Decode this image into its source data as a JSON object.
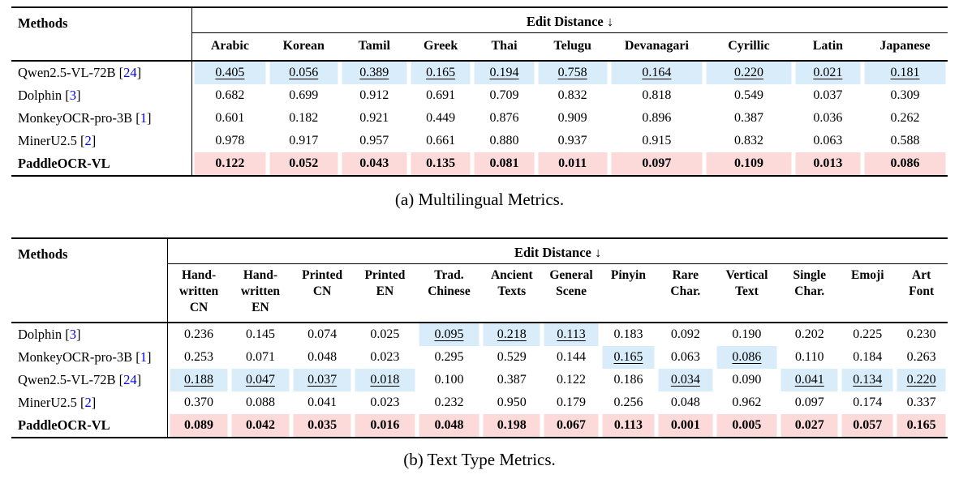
{
  "colors": {
    "second_best_highlight": "#d8ecf9",
    "best_highlight": "#fcdada",
    "citation_blue": "#0000EE"
  },
  "tables": [
    {
      "id": "multilingual",
      "methods_header": "Methods",
      "metric_header": "Edit Distance ↓",
      "columns": [
        "Arabic",
        "Korean",
        "Tamil",
        "Greek",
        "Thai",
        "Telugu",
        "Devanagari",
        "Cyrillic",
        "Latin",
        "Japanese"
      ],
      "rows": [
        {
          "method": "Qwen2.5-VL-72B",
          "cite": "24",
          "bold": false,
          "cells": [
            {
              "v": "0.405",
              "hl": "blue",
              "u": true
            },
            {
              "v": "0.056",
              "hl": "blue",
              "u": true
            },
            {
              "v": "0.389",
              "hl": "blue",
              "u": true
            },
            {
              "v": "0.165",
              "hl": "blue",
              "u": true
            },
            {
              "v": "0.194",
              "hl": "blue",
              "u": true
            },
            {
              "v": "0.758",
              "hl": "blue",
              "u": true
            },
            {
              "v": "0.164",
              "hl": "blue",
              "u": true
            },
            {
              "v": "0.220",
              "hl": "blue",
              "u": true
            },
            {
              "v": "0.021",
              "hl": "blue",
              "u": true
            },
            {
              "v": "0.181",
              "hl": "blue",
              "u": true
            }
          ]
        },
        {
          "method": "Dolphin",
          "cite": "3",
          "bold": false,
          "cells": [
            {
              "v": "0.682"
            },
            {
              "v": "0.699"
            },
            {
              "v": "0.912"
            },
            {
              "v": "0.691"
            },
            {
              "v": "0.709"
            },
            {
              "v": "0.832"
            },
            {
              "v": "0.818"
            },
            {
              "v": "0.549"
            },
            {
              "v": "0.037"
            },
            {
              "v": "0.309"
            }
          ]
        },
        {
          "method": "MonkeyOCR-pro-3B",
          "cite": "1",
          "bold": false,
          "cells": [
            {
              "v": "0.601"
            },
            {
              "v": "0.182"
            },
            {
              "v": "0.921"
            },
            {
              "v": "0.449"
            },
            {
              "v": "0.876"
            },
            {
              "v": "0.909"
            },
            {
              "v": "0.896"
            },
            {
              "v": "0.387"
            },
            {
              "v": "0.036"
            },
            {
              "v": "0.262"
            }
          ]
        },
        {
          "method": "MinerU2.5",
          "cite": "2",
          "bold": false,
          "cells": [
            {
              "v": "0.978"
            },
            {
              "v": "0.917"
            },
            {
              "v": "0.957"
            },
            {
              "v": "0.661"
            },
            {
              "v": "0.880"
            },
            {
              "v": "0.937"
            },
            {
              "v": "0.915"
            },
            {
              "v": "0.832"
            },
            {
              "v": "0.063"
            },
            {
              "v": "0.588"
            }
          ]
        },
        {
          "method": "PaddleOCR-VL",
          "cite": null,
          "bold": true,
          "cells": [
            {
              "v": "0.122",
              "hl": "pink"
            },
            {
              "v": "0.052",
              "hl": "pink"
            },
            {
              "v": "0.043",
              "hl": "pink"
            },
            {
              "v": "0.135",
              "hl": "pink"
            },
            {
              "v": "0.081",
              "hl": "pink"
            },
            {
              "v": "0.011",
              "hl": "pink"
            },
            {
              "v": "0.097",
              "hl": "pink"
            },
            {
              "v": "0.109",
              "hl": "pink"
            },
            {
              "v": "0.013",
              "hl": "pink"
            },
            {
              "v": "0.086",
              "hl": "pink"
            }
          ]
        }
      ],
      "caption": "(a) Multilingual Metrics."
    },
    {
      "id": "text-type",
      "methods_header": "Methods",
      "metric_header": "Edit Distance ↓",
      "columns": [
        [
          "Hand-",
          "written",
          "CN"
        ],
        [
          "Hand-",
          "written",
          "EN"
        ],
        [
          "Printed",
          "CN"
        ],
        [
          "Printed",
          "EN"
        ],
        [
          "Trad.",
          "Chinese"
        ],
        [
          "Ancient",
          "Texts"
        ],
        [
          "General",
          "Scene"
        ],
        [
          "Pinyin"
        ],
        [
          "Rare",
          "Char."
        ],
        [
          "Vertical",
          "Text"
        ],
        [
          "Single",
          "Char."
        ],
        [
          "Emoji"
        ],
        [
          "Art",
          "Font"
        ]
      ],
      "rows": [
        {
          "method": "Dolphin",
          "cite": "3",
          "bold": false,
          "cells": [
            {
              "v": "0.236"
            },
            {
              "v": "0.145"
            },
            {
              "v": "0.074"
            },
            {
              "v": "0.025"
            },
            {
              "v": "0.095",
              "hl": "blue",
              "u": true
            },
            {
              "v": "0.218",
              "hl": "blue",
              "u": true
            },
            {
              "v": "0.113",
              "hl": "blue",
              "u": true
            },
            {
              "v": "0.183"
            },
            {
              "v": "0.092"
            },
            {
              "v": "0.190"
            },
            {
              "v": "0.202"
            },
            {
              "v": "0.225"
            },
            {
              "v": "0.230"
            }
          ]
        },
        {
          "method": "MonkeyOCR-pro-3B",
          "cite": "1",
          "bold": false,
          "cells": [
            {
              "v": "0.253"
            },
            {
              "v": "0.071"
            },
            {
              "v": "0.048"
            },
            {
              "v": "0.023"
            },
            {
              "v": "0.295"
            },
            {
              "v": "0.529"
            },
            {
              "v": "0.144"
            },
            {
              "v": "0.165",
              "hl": "blue",
              "u": true
            },
            {
              "v": "0.063"
            },
            {
              "v": "0.086",
              "hl": "blue",
              "u": true
            },
            {
              "v": "0.110"
            },
            {
              "v": "0.184"
            },
            {
              "v": "0.263"
            }
          ]
        },
        {
          "method": "Qwen2.5-VL-72B",
          "cite": "24",
          "bold": false,
          "cells": [
            {
              "v": "0.188",
              "hl": "blue",
              "u": true
            },
            {
              "v": "0.047",
              "hl": "blue",
              "u": true
            },
            {
              "v": "0.037",
              "hl": "blue",
              "u": true
            },
            {
              "v": "0.018",
              "hl": "blue",
              "u": true
            },
            {
              "v": "0.100"
            },
            {
              "v": "0.387"
            },
            {
              "v": "0.122"
            },
            {
              "v": "0.186"
            },
            {
              "v": "0.034",
              "hl": "blue",
              "u": true
            },
            {
              "v": "0.090"
            },
            {
              "v": "0.041",
              "hl": "blue",
              "u": true
            },
            {
              "v": "0.134",
              "hl": "blue",
              "u": true
            },
            {
              "v": "0.220",
              "hl": "blue",
              "u": true
            }
          ]
        },
        {
          "method": "MinerU2.5",
          "cite": "2",
          "bold": false,
          "cells": [
            {
              "v": "0.370"
            },
            {
              "v": "0.088"
            },
            {
              "v": "0.041"
            },
            {
              "v": "0.023"
            },
            {
              "v": "0.232"
            },
            {
              "v": "0.950"
            },
            {
              "v": "0.179"
            },
            {
              "v": "0.256"
            },
            {
              "v": "0.048"
            },
            {
              "v": "0.962"
            },
            {
              "v": "0.097"
            },
            {
              "v": "0.174"
            },
            {
              "v": "0.337"
            }
          ]
        },
        {
          "method": "PaddleOCR-VL",
          "cite": null,
          "bold": true,
          "cells": [
            {
              "v": "0.089",
              "hl": "pink"
            },
            {
              "v": "0.042",
              "hl": "pink"
            },
            {
              "v": "0.035",
              "hl": "pink"
            },
            {
              "v": "0.016",
              "hl": "pink"
            },
            {
              "v": "0.048",
              "hl": "pink"
            },
            {
              "v": "0.198",
              "hl": "pink"
            },
            {
              "v": "0.067",
              "hl": "pink"
            },
            {
              "v": "0.113",
              "hl": "pink"
            },
            {
              "v": "0.001",
              "hl": "pink"
            },
            {
              "v": "0.005",
              "hl": "pink"
            },
            {
              "v": "0.027",
              "hl": "pink"
            },
            {
              "v": "0.057",
              "hl": "pink"
            },
            {
              "v": "0.165",
              "hl": "pink"
            }
          ]
        }
      ],
      "caption": "(b) Text Type Metrics."
    }
  ]
}
